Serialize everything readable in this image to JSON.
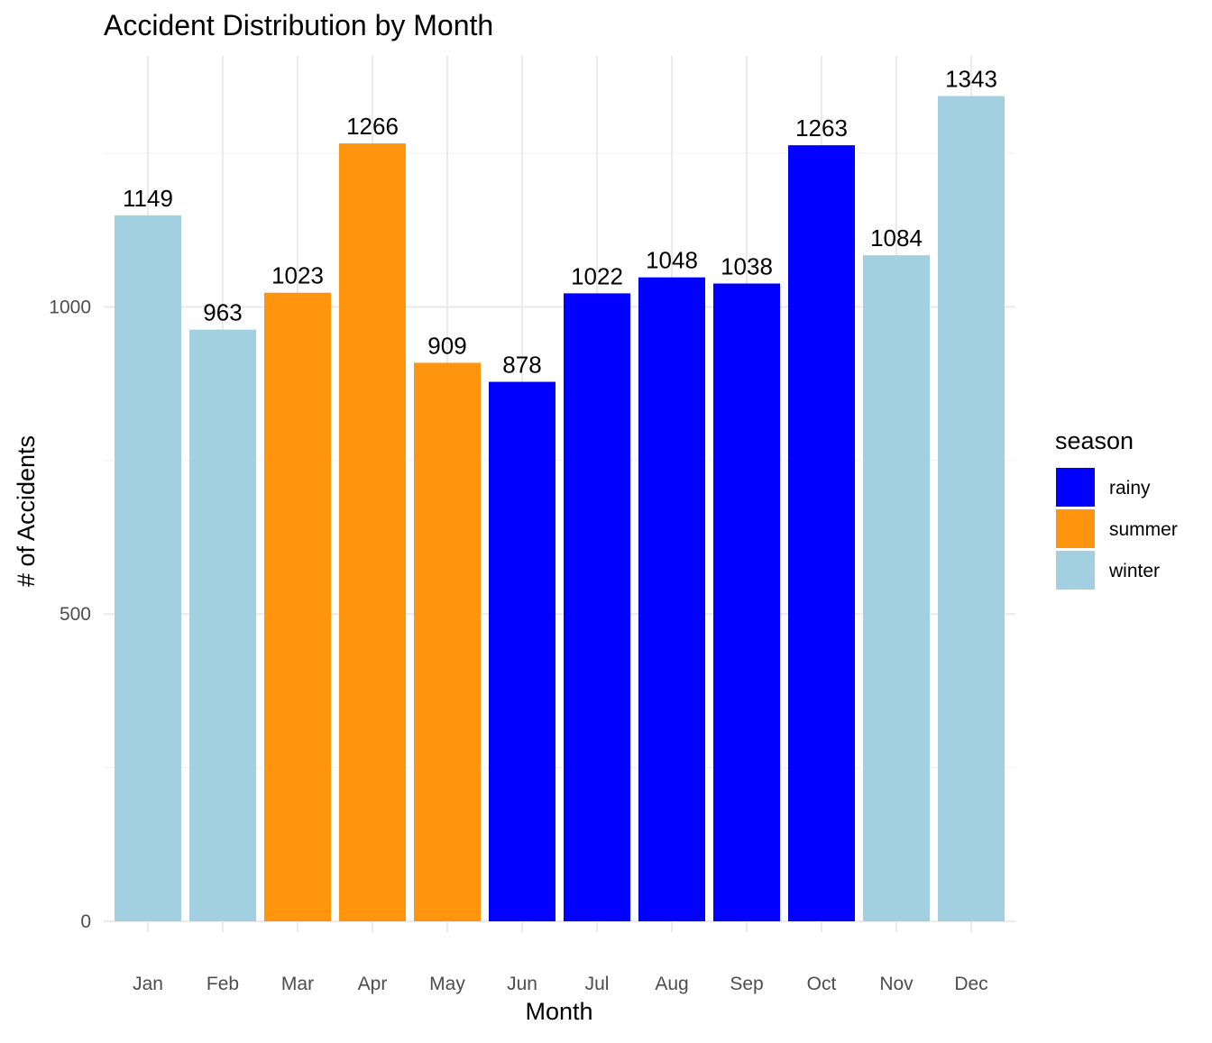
{
  "chart_data": {
    "type": "bar",
    "title": "Accident Distribution by Month",
    "xlabel": "Month",
    "ylabel": "# of Accidents",
    "categories": [
      "Jan",
      "Feb",
      "Mar",
      "Apr",
      "May",
      "Jun",
      "Jul",
      "Aug",
      "Sep",
      "Oct",
      "Nov",
      "Dec"
    ],
    "values": [
      1149,
      963,
      1023,
      1266,
      909,
      878,
      1022,
      1048,
      1038,
      1263,
      1084,
      1343
    ],
    "season": [
      "winter",
      "winter",
      "summer",
      "summer",
      "summer",
      "rainy",
      "rainy",
      "rainy",
      "rainy",
      "rainy",
      "winter",
      "winter"
    ],
    "ylim": [
      0,
      1400
    ],
    "yticks": [
      0,
      500,
      1000
    ],
    "grid": true,
    "legend": {
      "title": "season",
      "position": "right",
      "entries": [
        {
          "name": "rainy",
          "color": "#0000ff"
        },
        {
          "name": "summer",
          "color": "#ff950e"
        },
        {
          "name": "winter",
          "color": "#a2d0e0"
        }
      ]
    }
  }
}
